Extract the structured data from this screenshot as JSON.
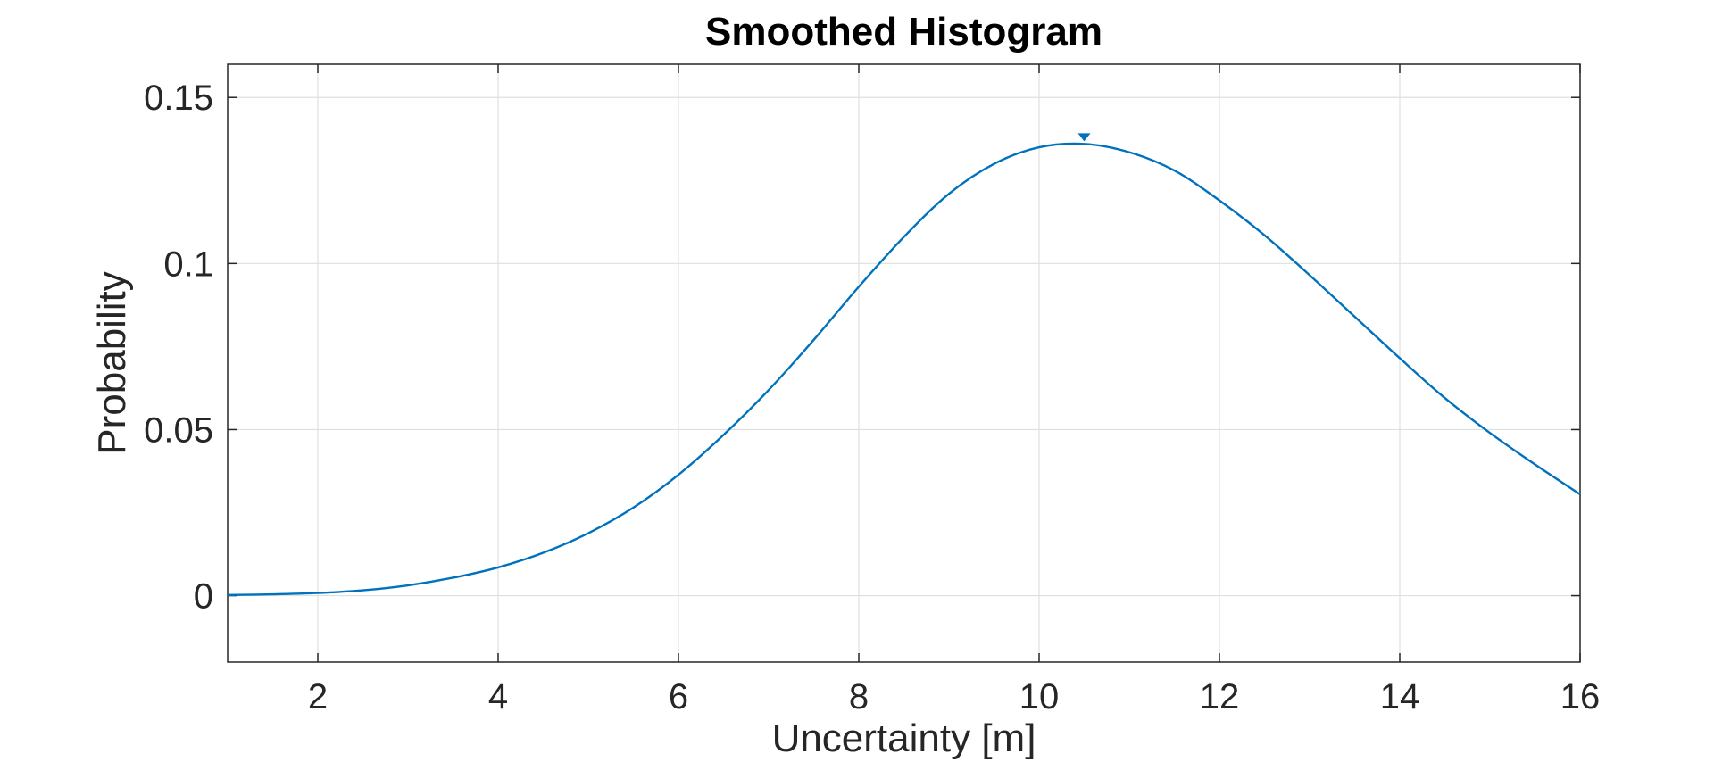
{
  "chart_data": {
    "type": "line",
    "title": "Smoothed Histogram",
    "xlabel": "Uncertainty [m]",
    "ylabel": "Probability",
    "xlim": [
      1,
      16
    ],
    "ylim": [
      -0.02,
      0.16
    ],
    "xticks": [
      2,
      4,
      6,
      8,
      10,
      12,
      14,
      16
    ],
    "xtick_labels": [
      "2",
      "4",
      "6",
      "8",
      "10",
      "12",
      "14",
      "16"
    ],
    "yticks": [
      0,
      0.05,
      0.1,
      0.15
    ],
    "ytick_labels": [
      "0",
      "0.05",
      "0.1",
      "0.15"
    ],
    "grid": true,
    "series": [
      {
        "color": "#0072bd",
        "x": [
          1,
          1.5,
          2,
          2.5,
          3,
          3.5,
          4,
          4.5,
          5,
          5.5,
          6,
          6.5,
          7,
          7.5,
          8,
          8.5,
          9,
          9.5,
          10,
          10.5,
          11,
          11.5,
          12,
          12.5,
          13,
          13.5,
          14,
          14.5,
          15,
          15.5,
          16
        ],
        "y": [
          0.0002,
          0.0004,
          0.0008,
          0.0016,
          0.0031,
          0.0054,
          0.0085,
          0.0129,
          0.0188,
          0.0265,
          0.0364,
          0.0484,
          0.0619,
          0.077,
          0.093,
          0.108,
          0.121,
          0.13,
          0.135,
          0.136,
          0.1335,
          0.128,
          0.119,
          0.1085,
          0.0965,
          0.084,
          0.0715,
          0.0595,
          0.049,
          0.0395,
          0.0305
        ]
      }
    ],
    "marker": {
      "shape": "triangle-down",
      "x": 10.5,
      "y": 0.138,
      "color": "#0072bd"
    }
  }
}
